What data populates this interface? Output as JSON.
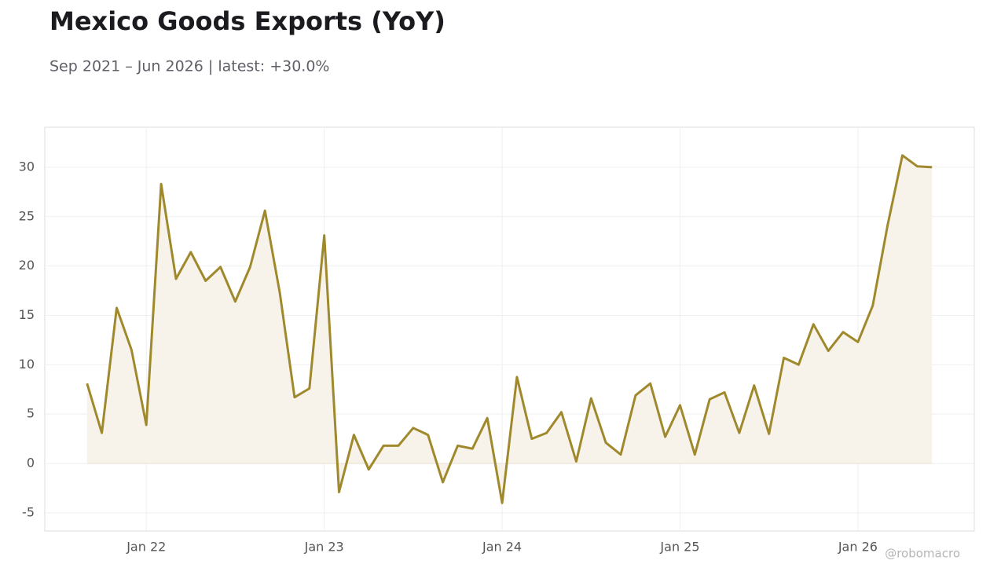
{
  "chart_data": {
    "type": "line",
    "title": "Mexico Goods Exports (YoY)",
    "subtitle": "Sep 2021 – Jun 2026 | latest: +30.0%",
    "watermark": "@robomacro",
    "x": [
      "2021-09",
      "2021-10",
      "2021-11",
      "2021-12",
      "2022-01",
      "2022-02",
      "2022-03",
      "2022-04",
      "2022-05",
      "2022-06",
      "2022-07",
      "2022-08",
      "2022-09",
      "2022-10",
      "2022-11",
      "2022-12",
      "2023-01",
      "2023-02",
      "2023-03",
      "2023-04",
      "2023-05",
      "2023-06",
      "2023-07",
      "2023-08",
      "2023-09",
      "2023-10",
      "2023-11",
      "2023-12",
      "2024-01",
      "2024-02",
      "2024-03",
      "2024-04",
      "2024-05",
      "2024-06",
      "2024-07",
      "2024-08",
      "2024-09",
      "2024-10",
      "2024-11",
      "2024-12",
      "2025-01",
      "2025-02",
      "2025-03",
      "2025-04",
      "2025-05",
      "2025-06",
      "2025-07",
      "2025-08",
      "2025-09",
      "2025-10",
      "2025-11",
      "2025-12",
      "2026-01",
      "2026-02",
      "2026-03",
      "2026-04",
      "2026-05",
      "2026-06"
    ],
    "values": [
      8.1,
      3.1,
      15.75,
      11.5,
      3.9,
      28.3,
      18.7,
      21.4,
      18.5,
      19.9,
      16.4,
      19.9,
      25.6,
      17.3,
      6.7,
      7.6,
      23.1,
      -2.9,
      2.9,
      -0.6,
      1.8,
      1.8,
      3.6,
      2.9,
      -1.9,
      1.8,
      1.5,
      4.6,
      -4.0,
      8.75,
      2.5,
      3.1,
      5.2,
      0.2,
      6.6,
      2.1,
      0.9,
      6.9,
      8.1,
      2.7,
      5.9,
      0.9,
      6.5,
      7.2,
      3.1,
      7.9,
      3.0,
      10.7,
      10.0,
      14.1,
      11.4,
      13.3,
      12.3,
      16.0,
      24.1,
      31.2,
      30.1,
      30.0
    ],
    "color": "#a0892d",
    "fill_color": "#f7f3ea",
    "ylim": [
      -6.84,
      34.05
    ],
    "yticks": [
      -5,
      0,
      5,
      10,
      15,
      20,
      25,
      30
    ],
    "xticks": [
      {
        "value": "2022-01",
        "label": "Jan 22"
      },
      {
        "value": "2023-01",
        "label": "Jan 23"
      },
      {
        "value": "2024-01",
        "label": "Jan 24"
      },
      {
        "value": "2025-01",
        "label": "Jan 25"
      },
      {
        "value": "2026-01",
        "label": "Jan 26"
      }
    ],
    "grid": true
  }
}
